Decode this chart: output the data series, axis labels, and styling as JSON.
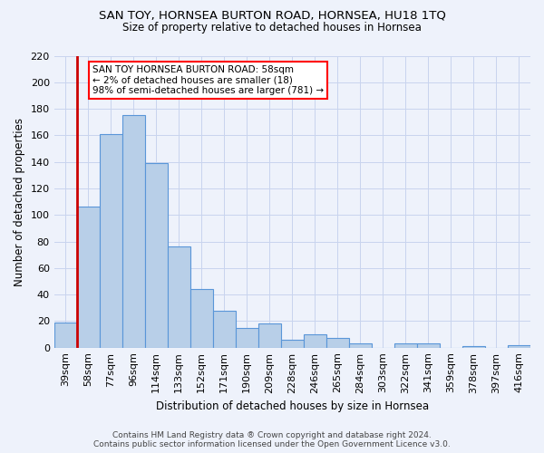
{
  "title": "SAN TOY, HORNSEA BURTON ROAD, HORNSEA, HU18 1TQ",
  "subtitle": "Size of property relative to detached houses in Hornsea",
  "xlabel": "Distribution of detached houses by size in Hornsea",
  "ylabel": "Number of detached properties",
  "categories": [
    "39sqm",
    "58sqm",
    "77sqm",
    "96sqm",
    "114sqm",
    "133sqm",
    "152sqm",
    "171sqm",
    "190sqm",
    "209sqm",
    "228sqm",
    "246sqm",
    "265sqm",
    "284sqm",
    "303sqm",
    "322sqm",
    "341sqm",
    "359sqm",
    "378sqm",
    "397sqm",
    "416sqm"
  ],
  "values": [
    19,
    106,
    161,
    175,
    139,
    76,
    44,
    28,
    15,
    18,
    6,
    10,
    7,
    3,
    0,
    3,
    3,
    0,
    1,
    0,
    2
  ],
  "bar_color": "#b8cfe8",
  "bar_edge_color": "#5a96d8",
  "highlight_index": 1,
  "highlight_color_edge": "#cc0000",
  "ylim": [
    0,
    220
  ],
  "yticks": [
    0,
    20,
    40,
    60,
    80,
    100,
    120,
    140,
    160,
    180,
    200,
    220
  ],
  "annotation_title": "SAN TOY HORNSEA BURTON ROAD: 58sqm",
  "annotation_line1": "← 2% of detached houses are smaller (18)",
  "annotation_line2": "98% of semi-detached houses are larger (781) →",
  "footnote1": "Contains HM Land Registry data ® Crown copyright and database right 2024.",
  "footnote2": "Contains public sector information licensed under the Open Government Licence v3.0.",
  "bg_color": "#eef2fb",
  "grid_color": "#c8d4ee"
}
